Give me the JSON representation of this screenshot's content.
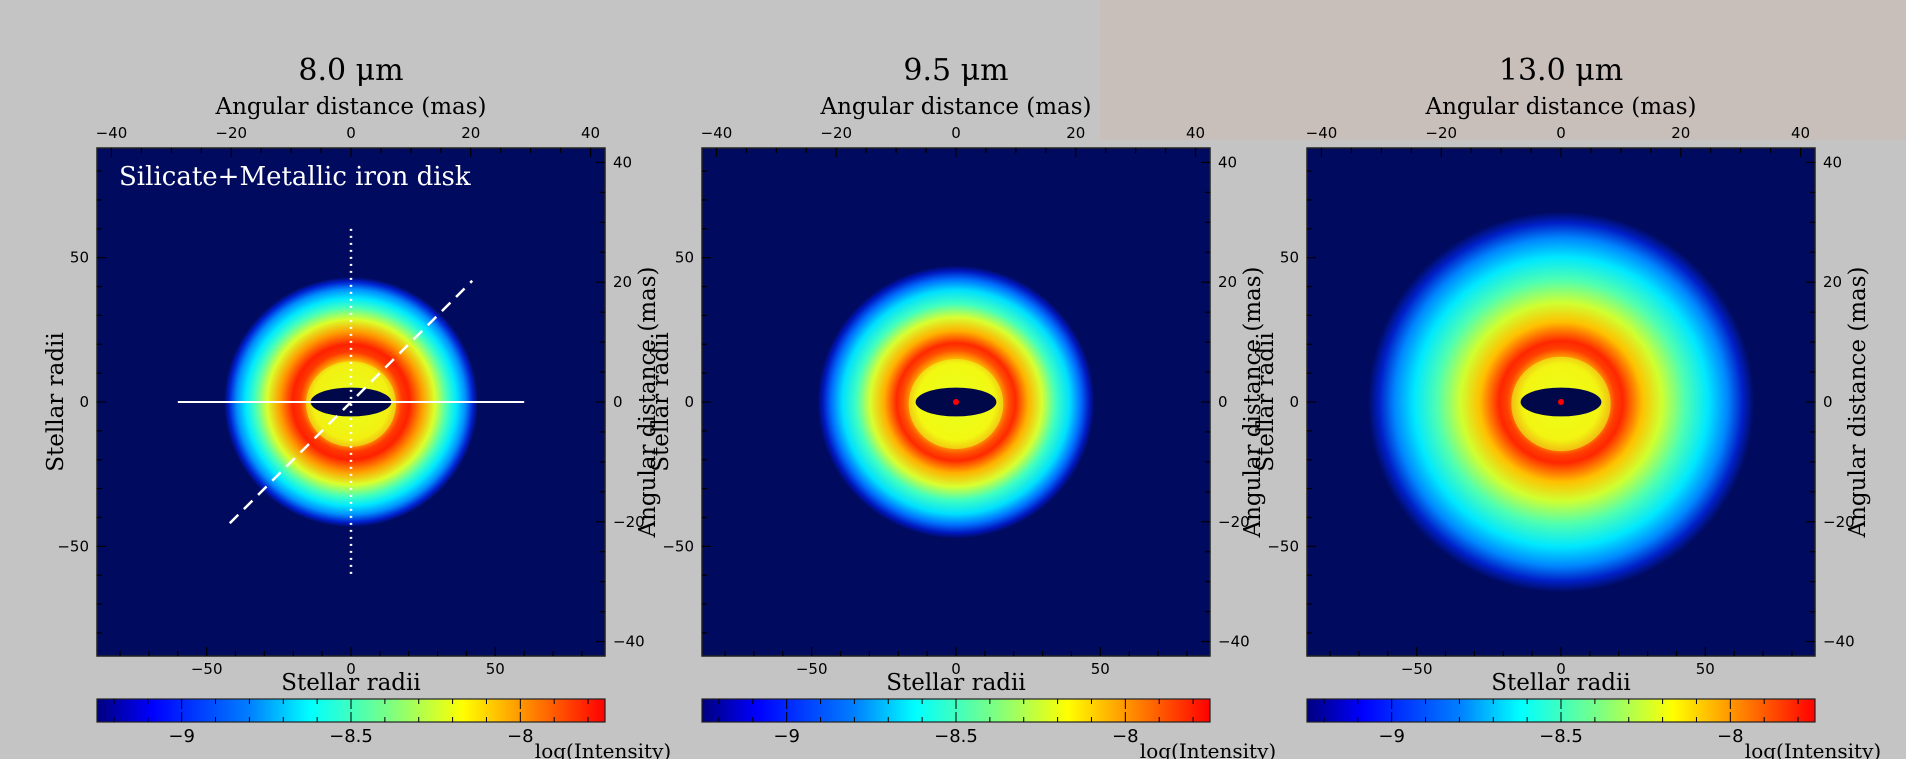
{
  "chart_data": [
    {
      "type": "heatmap",
      "title": "8.0 μm",
      "annotation": "Silicate+Metallic iron disk",
      "xlabel": "Stellar radii",
      "ylabel": "Stellar radii",
      "x2label": "Angular distance (mas)",
      "y2label": "Angular distance (mas)",
      "xlim": [
        -88,
        88
      ],
      "ylim": [
        -88,
        88
      ],
      "x_ticks": [
        -50,
        0,
        50
      ],
      "y_ticks": [
        -50,
        0,
        50
      ],
      "top_ticks": [
        -40,
        -20,
        0,
        20,
        40
      ],
      "right_ticks": [
        -40,
        -20,
        0,
        20,
        40
      ],
      "mas_per_radius": 0.482,
      "colorbar": {
        "label": "log(Intensity)",
        "range": [
          -9.25,
          -7.75
        ],
        "ticks": [
          -9,
          -8.5,
          -8
        ]
      },
      "cuts": [
        "solid",
        "dotted",
        "dashed"
      ],
      "ring_outer_radius": 44,
      "peak_ring_radius": 19,
      "star_marker": false
    },
    {
      "type": "heatmap",
      "title": "9.5 μm",
      "xlabel": "Stellar radii",
      "ylabel": "Stellar radii",
      "x2label": "Angular distance (mas)",
      "y2label": "Angular distance (mas)",
      "xlim": [
        -88,
        88
      ],
      "ylim": [
        -88,
        88
      ],
      "x_ticks": [
        -50,
        0,
        50
      ],
      "y_ticks": [
        -50,
        0,
        50
      ],
      "top_ticks": [
        -40,
        -20,
        0,
        20,
        40
      ],
      "right_ticks": [
        -40,
        -20,
        0,
        20,
        40
      ],
      "mas_per_radius": 0.482,
      "colorbar": {
        "label": "log(Intensity)",
        "range": [
          -9.25,
          -7.75
        ],
        "ticks": [
          -9,
          -8.5,
          -8
        ]
      },
      "ring_outer_radius": 48,
      "peak_ring_radius": 20,
      "star_marker": true
    },
    {
      "type": "heatmap",
      "title": "13.0 μm",
      "xlabel": "Stellar radii",
      "ylabel": "Stellar radii",
      "x2label": "Angular distance (mas)",
      "y2label": "Angular distance (mas)",
      "xlim": [
        -88,
        88
      ],
      "ylim": [
        -88,
        88
      ],
      "x_ticks": [
        -50,
        0,
        50
      ],
      "y_ticks": [
        -50,
        0,
        50
      ],
      "top_ticks": [
        -40,
        -20,
        0,
        20,
        40
      ],
      "right_ticks": [
        -40,
        -20,
        0,
        20,
        40
      ],
      "mas_per_radius": 0.482,
      "colorbar": {
        "label": "log(Intensity)",
        "range": [
          -9.25,
          -7.75
        ],
        "ticks": [
          -9,
          -8.5,
          -8
        ]
      },
      "ring_outer_radius": 67,
      "peak_ring_radius": 21,
      "star_marker": true
    }
  ],
  "colors": {
    "background_field": "#000a5e",
    "jet_scale": [
      "#00007f",
      "#0000ff",
      "#007fff",
      "#00ffff",
      "#7fff7f",
      "#ffff00",
      "#ff7f00",
      "#ff0000",
      "#7f0000"
    ],
    "cavity": "#00084a",
    "star": "#ff0000",
    "annotation_text": "#ffffff",
    "cut_lines": "#ffffff"
  }
}
